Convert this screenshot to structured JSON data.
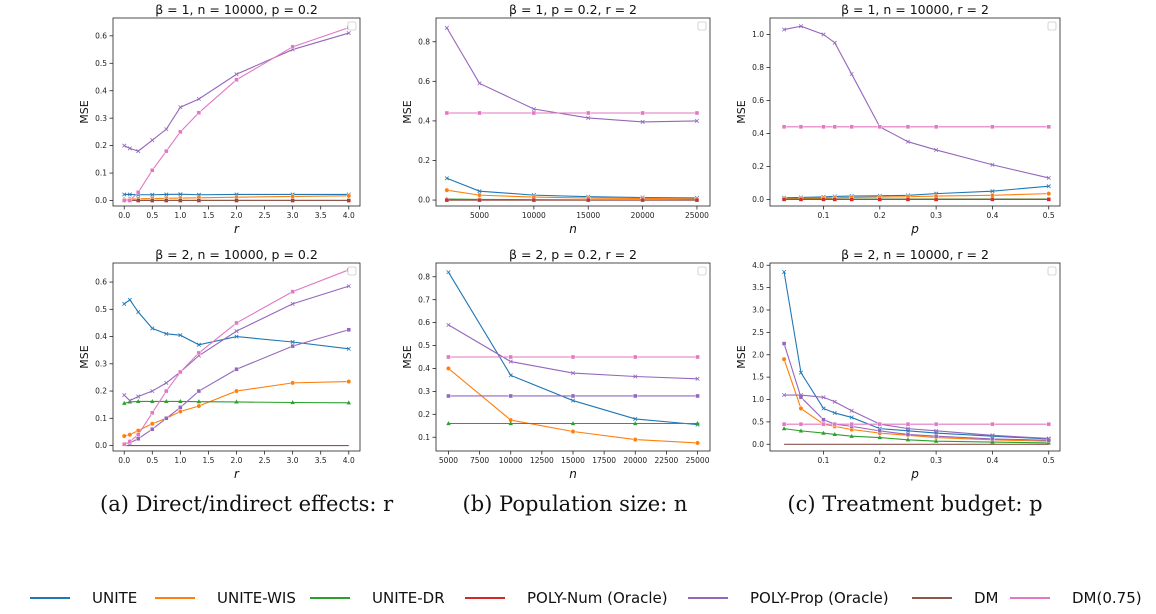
{
  "chart_data": [
    {
      "type": "line",
      "title": "β = 1, n = 10000, p = 0.2",
      "xlabel": "r",
      "ylabel": "MSE",
      "xlim": [
        -0.2,
        4.2
      ],
      "ylim": [
        -0.02,
        0.665
      ],
      "xticks": [
        0.0,
        0.5,
        1.0,
        1.5,
        2.0,
        2.5,
        3.0,
        3.5,
        4.0
      ],
      "xtick_labels": [
        "0.0",
        "0.5",
        "1.0",
        "1.5",
        "2.0",
        "2.5",
        "3.0",
        "3.5",
        "4.0"
      ],
      "yticks": [
        0.0,
        0.1,
        0.2,
        0.3,
        0.4,
        0.5,
        0.6
      ],
      "ytick_labels": [
        "0.0",
        "0.1",
        "0.2",
        "0.3",
        "0.4",
        "0.5",
        "0.6"
      ],
      "x": [
        0,
        0.1,
        0.25,
        0.5,
        0.75,
        1.0,
        1.33,
        2.0,
        3.0,
        4.0
      ],
      "series": [
        {
          "name": "UNITE",
          "values": [
            0.022,
            0.022,
            0.021,
            0.021,
            0.022,
            0.023,
            0.021,
            0.022,
            0.022,
            0.022
          ]
        },
        {
          "name": "UNITE-WIS",
          "values": [
            0.004,
            0.005,
            0.006,
            0.007,
            0.008,
            0.009,
            0.01,
            0.012,
            0.015,
            0.017
          ]
        },
        {
          "name": "UNITE-DR",
          "values": [
            0.001,
            0.001,
            0.001,
            0.001,
            0.001,
            0.001,
            0.001,
            0.001,
            0.001,
            0.001
          ]
        },
        {
          "name": "POLY-Num (Oracle)",
          "values": [
            0.0,
            0.0,
            0.0,
            0.0,
            0.0,
            0.0,
            0.0,
            0.0,
            0.0,
            0.0
          ]
        },
        {
          "name": "POLY-Prop (Oracle)",
          "values": [
            0.2,
            0.19,
            0.18,
            0.22,
            0.26,
            0.34,
            0.37,
            0.46,
            0.55,
            0.61
          ]
        },
        {
          "name": "DM",
          "values": [
            0.0,
            0.0,
            0.0,
            0.0,
            0.0,
            0.0,
            0.0,
            0.0,
            0.0,
            0.0
          ]
        },
        {
          "name": "DM(0.75)",
          "values": [
            0.0,
            0.0,
            0.03,
            0.11,
            0.18,
            0.25,
            0.32,
            0.44,
            0.56,
            0.63
          ]
        }
      ]
    },
    {
      "type": "line",
      "title": "β = 1, p = 0.2, r = 2",
      "xlabel": "n",
      "ylabel": "MSE",
      "xlim": [
        1000,
        26200
      ],
      "ylim": [
        -0.03,
        0.92
      ],
      "xticks": [
        5000,
        10000,
        15000,
        20000,
        25000
      ],
      "xtick_labels": [
        "5000",
        "10000",
        "15000",
        "20000",
        "25000"
      ],
      "yticks": [
        0.0,
        0.2,
        0.4,
        0.6,
        0.8
      ],
      "ytick_labels": [
        "0.0",
        "0.2",
        "0.4",
        "0.6",
        "0.8"
      ],
      "x": [
        2000,
        5000,
        10000,
        15000,
        20000,
        25000
      ],
      "series": [
        {
          "name": "UNITE",
          "values": [
            0.11,
            0.045,
            0.025,
            0.017,
            0.013,
            0.011
          ]
        },
        {
          "name": "UNITE-WIS",
          "values": [
            0.05,
            0.025,
            0.015,
            0.01,
            0.008,
            0.006
          ]
        },
        {
          "name": "UNITE-DR",
          "values": [
            0.005,
            0.003,
            0.002,
            0.001,
            0.001,
            0.001
          ]
        },
        {
          "name": "POLY-Num (Oracle)",
          "values": [
            0.0,
            0.0,
            0.0,
            0.0,
            0.0,
            0.0
          ]
        },
        {
          "name": "POLY-Prop (Oracle)",
          "values": [
            0.87,
            0.59,
            0.46,
            0.415,
            0.395,
            0.4
          ]
        },
        {
          "name": "DM",
          "values": [
            0.0,
            0.0,
            0.0,
            0.0,
            0.0,
            0.0
          ]
        },
        {
          "name": "DM(0.75)",
          "values": [
            0.44,
            0.44,
            0.44,
            0.44,
            0.44,
            0.44
          ]
        }
      ]
    },
    {
      "type": "line",
      "title": "β = 1, n = 10000, r = 2",
      "xlabel": "p",
      "ylabel": "MSE",
      "xlim": [
        0.005,
        0.52
      ],
      "ylim": [
        -0.04,
        1.1
      ],
      "xticks": [
        0.1,
        0.2,
        0.3,
        0.4,
        0.5
      ],
      "xtick_labels": [
        "0.1",
        "0.2",
        "0.3",
        "0.4",
        "0.5"
      ],
      "yticks": [
        0.0,
        0.2,
        0.4,
        0.6,
        0.8,
        1.0
      ],
      "ytick_labels": [
        "0.0",
        "0.2",
        "0.4",
        "0.6",
        "0.8",
        "1.0"
      ],
      "x": [
        0.03,
        0.06,
        0.1,
        0.12,
        0.15,
        0.2,
        0.25,
        0.3,
        0.4,
        0.5
      ],
      "series": [
        {
          "name": "UNITE",
          "values": [
            0.01,
            0.012,
            0.015,
            0.018,
            0.02,
            0.022,
            0.025,
            0.035,
            0.05,
            0.08
          ]
        },
        {
          "name": "UNITE-WIS",
          "values": [
            0.005,
            0.006,
            0.008,
            0.01,
            0.012,
            0.014,
            0.016,
            0.02,
            0.025,
            0.035
          ]
        },
        {
          "name": "UNITE-DR",
          "values": [
            0.002,
            0.002,
            0.002,
            0.002,
            0.002,
            0.002,
            0.002,
            0.002,
            0.002,
            0.002
          ]
        },
        {
          "name": "POLY-Num (Oracle)",
          "values": [
            0.0,
            0.0,
            0.0,
            0.0,
            0.0,
            0.0,
            0.0,
            0.0,
            0.0,
            0.0
          ]
        },
        {
          "name": "POLY-Prop (Oracle)",
          "values": [
            1.03,
            1.05,
            1.0,
            0.95,
            0.76,
            0.44,
            0.35,
            0.3,
            0.21,
            0.13
          ]
        },
        {
          "name": "DM",
          "values": [
            0.0,
            0.0,
            0.0,
            0.0,
            0.0,
            0.0,
            0.0,
            0.0,
            0.0,
            0.0
          ]
        },
        {
          "name": "DM(0.75)",
          "values": [
            0.44,
            0.44,
            0.44,
            0.44,
            0.44,
            0.44,
            0.44,
            0.44,
            0.44,
            0.44
          ]
        }
      ]
    },
    {
      "type": "line",
      "title": "β = 2, n = 10000, p = 0.2",
      "xlabel": "r",
      "ylabel": "MSE",
      "xlim": [
        -0.2,
        4.2
      ],
      "ylim": [
        -0.02,
        0.67
      ],
      "xticks": [
        0.0,
        0.5,
        1.0,
        1.5,
        2.0,
        2.5,
        3.0,
        3.5,
        4.0
      ],
      "xtick_labels": [
        "0.0",
        "0.5",
        "1.0",
        "1.5",
        "2.0",
        "2.5",
        "3.0",
        "3.5",
        "4.0"
      ],
      "yticks": [
        0.0,
        0.1,
        0.2,
        0.3,
        0.4,
        0.5,
        0.6
      ],
      "ytick_labels": [
        "0.0",
        "0.1",
        "0.2",
        "0.3",
        "0.4",
        "0.5",
        "0.6"
      ],
      "x": [
        0,
        0.1,
        0.25,
        0.5,
        0.75,
        1.0,
        1.33,
        2.0,
        3.0,
        4.0
      ],
      "series": [
        {
          "name": "UNITE",
          "values": [
            0.52,
            0.535,
            0.49,
            0.43,
            0.41,
            0.405,
            0.37,
            0.4,
            0.38,
            0.355
          ]
        },
        {
          "name": "UNITE-WIS",
          "values": [
            0.035,
            0.04,
            0.055,
            0.08,
            0.1,
            0.125,
            0.145,
            0.2,
            0.23,
            0.235
          ]
        },
        {
          "name": "UNITE-DR",
          "values": [
            0.155,
            0.16,
            0.162,
            0.162,
            0.162,
            0.162,
            0.161,
            0.16,
            0.158,
            0.157
          ]
        },
        {
          "name": "POLY-Num (Oracle)",
          "values": [
            0.005,
            0.01,
            0.025,
            0.06,
            0.1,
            0.14,
            0.2,
            0.28,
            0.365,
            0.425
          ]
        },
        {
          "name": "POLY-Prop (Oracle)",
          "values": [
            0.185,
            0.165,
            0.18,
            0.2,
            0.23,
            0.27,
            0.33,
            0.42,
            0.52,
            0.585
          ]
        },
        {
          "name": "DM",
          "values": [
            0.0,
            0.0,
            0.0,
            0.0,
            0.0,
            0.0,
            0.0,
            0.0,
            0.0,
            0.0
          ]
        },
        {
          "name": "DM(0.75)",
          "values": [
            0.005,
            0.015,
            0.04,
            0.12,
            0.2,
            0.27,
            0.34,
            0.45,
            0.565,
            0.645
          ]
        }
      ]
    },
    {
      "type": "line",
      "title": "β = 2, p = 0.2, r = 2",
      "xlabel": "n",
      "ylabel": "MSE",
      "xlim": [
        4000,
        26000
      ],
      "ylim": [
        0.04,
        0.86
      ],
      "xticks": [
        5000,
        7500,
        10000,
        12500,
        15000,
        17500,
        20000,
        22500,
        25000
      ],
      "xtick_labels": [
        "5000",
        "7500",
        "10000",
        "12500",
        "15000",
        "17500",
        "20000",
        "22500",
        "25000"
      ],
      "yticks": [
        0.1,
        0.2,
        0.3,
        0.4,
        0.5,
        0.6,
        0.7,
        0.8
      ],
      "ytick_labels": [
        "0.1",
        "0.2",
        "0.3",
        "0.4",
        "0.5",
        "0.6",
        "0.7",
        "0.8"
      ],
      "x": [
        5000,
        10000,
        15000,
        20000,
        25000
      ],
      "series": [
        {
          "name": "UNITE",
          "values": [
            0.82,
            0.37,
            0.26,
            0.18,
            0.155
          ]
        },
        {
          "name": "UNITE-WIS",
          "values": [
            0.4,
            0.175,
            0.125,
            0.09,
            0.075
          ]
        },
        {
          "name": "UNITE-DR",
          "values": [
            0.16,
            0.16,
            0.16,
            0.16,
            0.16
          ]
        },
        {
          "name": "POLY-Num (Oracle)",
          "values": [
            0.28,
            0.28,
            0.28,
            0.28,
            0.28
          ]
        },
        {
          "name": "POLY-Prop (Oracle)",
          "values": [
            0.59,
            0.43,
            0.38,
            0.365,
            0.355
          ]
        },
        {
          "name": "DM",
          "values": [
            0.0,
            0.0,
            0.0,
            0.0,
            0.0
          ]
        },
        {
          "name": "DM(0.75)",
          "values": [
            0.45,
            0.45,
            0.45,
            0.45,
            0.45
          ]
        }
      ]
    },
    {
      "type": "line",
      "title": "β = 2, n = 10000, r = 2",
      "xlabel": "p",
      "ylabel": "MSE",
      "xlim": [
        0.005,
        0.52
      ],
      "ylim": [
        -0.15,
        4.05
      ],
      "xticks": [
        0.1,
        0.2,
        0.3,
        0.4,
        0.5
      ],
      "xtick_labels": [
        "0.1",
        "0.2",
        "0.3",
        "0.4",
        "0.5"
      ],
      "yticks": [
        0.0,
        0.5,
        1.0,
        1.5,
        2.0,
        2.5,
        3.0,
        3.5,
        4.0
      ],
      "ytick_labels": [
        "0.0",
        "0.5",
        "1.0",
        "1.5",
        "2.0",
        "2.5",
        "3.0",
        "3.5",
        "4.0"
      ],
      "x": [
        0.03,
        0.06,
        0.1,
        0.12,
        0.15,
        0.2,
        0.25,
        0.3,
        0.4,
        0.5
      ],
      "series": [
        {
          "name": "UNITE",
          "values": [
            3.85,
            1.6,
            0.8,
            0.7,
            0.6,
            0.35,
            0.3,
            0.25,
            0.18,
            0.12
          ]
        },
        {
          "name": "UNITE-WIS",
          "values": [
            1.9,
            0.8,
            0.45,
            0.4,
            0.33,
            0.25,
            0.2,
            0.15,
            0.1,
            0.07
          ]
        },
        {
          "name": "UNITE-DR",
          "values": [
            0.35,
            0.3,
            0.25,
            0.22,
            0.18,
            0.15,
            0.1,
            0.07,
            0.05,
            0.03
          ]
        },
        {
          "name": "POLY-Num (Oracle)",
          "values": [
            2.25,
            1.05,
            0.55,
            0.45,
            0.4,
            0.3,
            0.22,
            0.18,
            0.12,
            0.09
          ]
        },
        {
          "name": "POLY-Prop (Oracle)",
          "values": [
            1.1,
            1.1,
            1.05,
            0.95,
            0.75,
            0.45,
            0.35,
            0.3,
            0.2,
            0.13
          ]
        },
        {
          "name": "DM",
          "values": [
            0.0,
            0.0,
            0.0,
            0.0,
            0.0,
            0.0,
            0.0,
            0.0,
            0.0,
            0.0
          ]
        },
        {
          "name": "DM(0.75)",
          "values": [
            0.45,
            0.45,
            0.45,
            0.45,
            0.45,
            0.45,
            0.45,
            0.45,
            0.45,
            0.45
          ]
        }
      ]
    }
  ],
  "series_styles": [
    {
      "name": "UNITE",
      "color": "#1f77b4",
      "marker": "x"
    },
    {
      "name": "UNITE-WIS",
      "color": "#ff7f0e",
      "marker": "o"
    },
    {
      "name": "UNITE-DR",
      "color": "#2ca02c",
      "marker": "^"
    },
    {
      "name": "POLY-Num (Oracle)",
      "color": "#d62728",
      "marker": "s"
    },
    {
      "name": "POLY-Prop (Oracle)",
      "color": "#9467bd",
      "marker": "x"
    },
    {
      "name": "DM",
      "color": "#8c564b",
      "marker": "none"
    },
    {
      "name": "DM(0.75)",
      "color": "#e377c2",
      "marker": "s"
    }
  ],
  "panel_series_colors": [
    [
      "#1f77b4",
      "#ff7f0e",
      "#2ca02c",
      "#d62728",
      "#9467bd",
      "#8c564b",
      "#e377c2"
    ],
    [
      "#1f77b4",
      "#ff7f0e",
      "#2ca02c",
      "#d62728",
      "#9467bd",
      "#8c564b",
      "#e377c2"
    ],
    [
      "#1f77b4",
      "#ff7f0e",
      "#2ca02c",
      "#d62728",
      "#9467bd",
      "#8c564b",
      "#e377c2"
    ],
    [
      "#1f77b4",
      "#ff7f0e",
      "#2ca02c",
      "#9467bd",
      "#9467bd",
      "#8c564b",
      "#e377c2"
    ],
    [
      "#1f77b4",
      "#ff7f0e",
      "#2ca02c",
      "#9467bd",
      "#9467bd",
      "#8c564b",
      "#e377c2"
    ],
    [
      "#1f77b4",
      "#ff7f0e",
      "#2ca02c",
      "#9467bd",
      "#9467bd",
      "#8c564b",
      "#e377c2"
    ]
  ],
  "captions": [
    "(a) Direct/indirect effects: r",
    "(b) Population size: n",
    "(c) Treatment budget: p"
  ],
  "legend": [
    "UNITE",
    "UNITE-WIS",
    "UNITE-DR",
    "POLY-Num (Oracle)",
    "POLY-Prop (Oracle)",
    "DM",
    "DM(0.75)"
  ]
}
